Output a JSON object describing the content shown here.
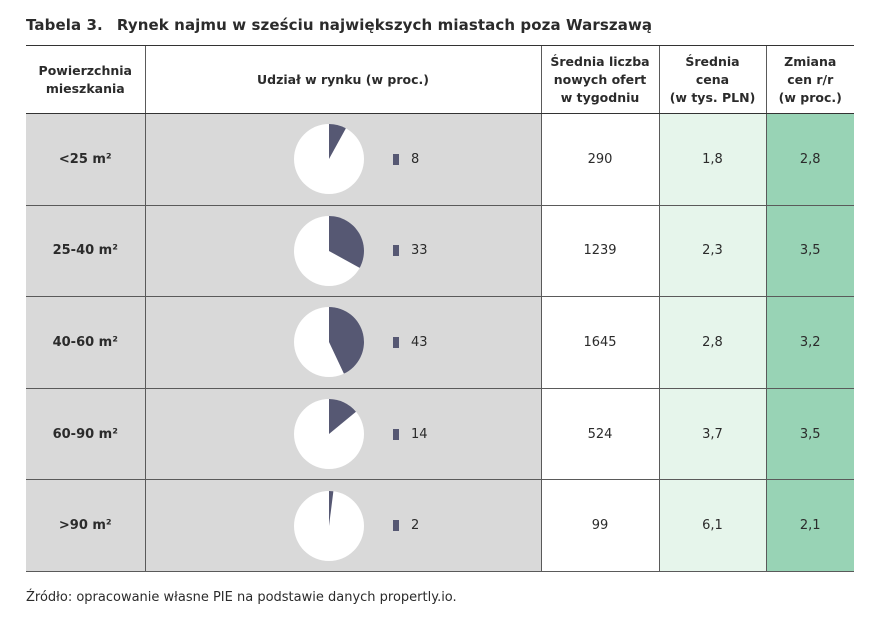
{
  "title": {
    "number": "Tabela 3.",
    "text": "Rynek najmu w sześciu największych miastach poza Warszawą"
  },
  "columns": [
    "Powierzchnia mieszkania",
    "Udział w rynku (w proc.)",
    "Średnia liczba nowych ofert w tygodniu",
    "Średnia cena (w tys. PLN)",
    "Zmiana cen r/r (w proc.)"
  ],
  "column_lines": [
    [
      "Powierzchnia",
      "mieszkania"
    ],
    [
      "Udział w rynku (w proc.)"
    ],
    [
      "Średnia liczba",
      "nowych ofert",
      "w tygodniu"
    ],
    [
      "Średnia",
      "cena",
      "(w tys. PLN)"
    ],
    [
      "Zmiana",
      "cen r/r",
      "(w proc.)"
    ]
  ],
  "rows": [
    {
      "size": "<25 m²",
      "share": 8,
      "offers": "290",
      "price": "1,8",
      "change": "2,8"
    },
    {
      "size": "25-40 m²",
      "share": 33,
      "offers": "1239",
      "price": "2,3",
      "change": "3,5"
    },
    {
      "size": "40-60 m²",
      "share": 43,
      "offers": "1645",
      "price": "2,8",
      "change": "3,2"
    },
    {
      "size": "60-90 m²",
      "share": 14,
      "offers": "524",
      "price": "3,7",
      "change": "3,5"
    },
    {
      "size": ">90 m²",
      "share": 2,
      "offers": "99",
      "price": "6,1",
      "change": "2,1"
    }
  ],
  "colors": {
    "pie_slice": "#565873",
    "pie_rest": "#ffffff",
    "label_bg": "#d9d9d9",
    "price_bg": "#e6f5eb",
    "change_bg": "#98d3b5"
  },
  "source": "Źródło: opracowanie własne PIE na podstawie danych propertly.io."
}
